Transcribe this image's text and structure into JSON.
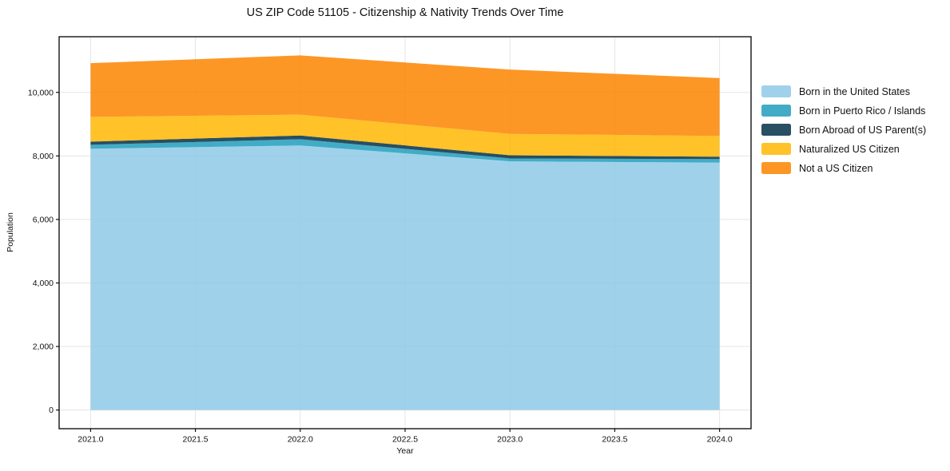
{
  "title": "US ZIP Code 51105 - Citizenship & Nativity Trends Over Time",
  "chart_data": {
    "type": "area",
    "stacked": true,
    "title": "US ZIP Code 51105 - Citizenship & Nativity Trends Over Time",
    "xlabel": "Year",
    "ylabel": "Population",
    "x": [
      2021,
      2022,
      2023,
      2024
    ],
    "series": [
      {
        "name": "Born in the United States",
        "color": "#8ecae6",
        "values": [
          8225,
          8330,
          7830,
          7790
        ]
      },
      {
        "name": "Born in Puerto Rico / Islands",
        "color": "#219ebc",
        "values": [
          125,
          195,
          90,
          110
        ]
      },
      {
        "name": "Born Abroad of US Parent(s)",
        "color": "#023047",
        "values": [
          100,
          120,
          100,
          75
        ]
      },
      {
        "name": "Naturalized US Citizen",
        "color": "#ffb703",
        "values": [
          780,
          655,
          675,
          655
        ]
      },
      {
        "name": "Not a US Citizen",
        "color": "#fb8500",
        "values": [
          1690,
          1865,
          2025,
          1820
        ]
      }
    ],
    "stack_totals": [
      10920,
      11165,
      10720,
      10450
    ],
    "fill_opacity": 0.85,
    "xlim": [
      2020.85,
      2024.15
    ],
    "ylim": [
      -588,
      11753
    ],
    "xticks": [
      2021.0,
      2021.5,
      2022.0,
      2022.5,
      2023.0,
      2023.5,
      2024.0
    ],
    "xtick_labels": [
      "2021.0",
      "2021.5",
      "2022.0",
      "2022.5",
      "2023.0",
      "2023.5",
      "2024.0"
    ],
    "yticks": [
      0,
      2000,
      4000,
      6000,
      8000,
      10000
    ],
    "ytick_labels": [
      "0",
      "2,000",
      "4,000",
      "6,000",
      "8,000",
      "10,000"
    ],
    "grid": true,
    "legend_position": "outside-right"
  },
  "colors": {
    "grid": "#e5e5e5",
    "spine": "#000000",
    "text": "#111111",
    "background": "#ffffff"
  }
}
